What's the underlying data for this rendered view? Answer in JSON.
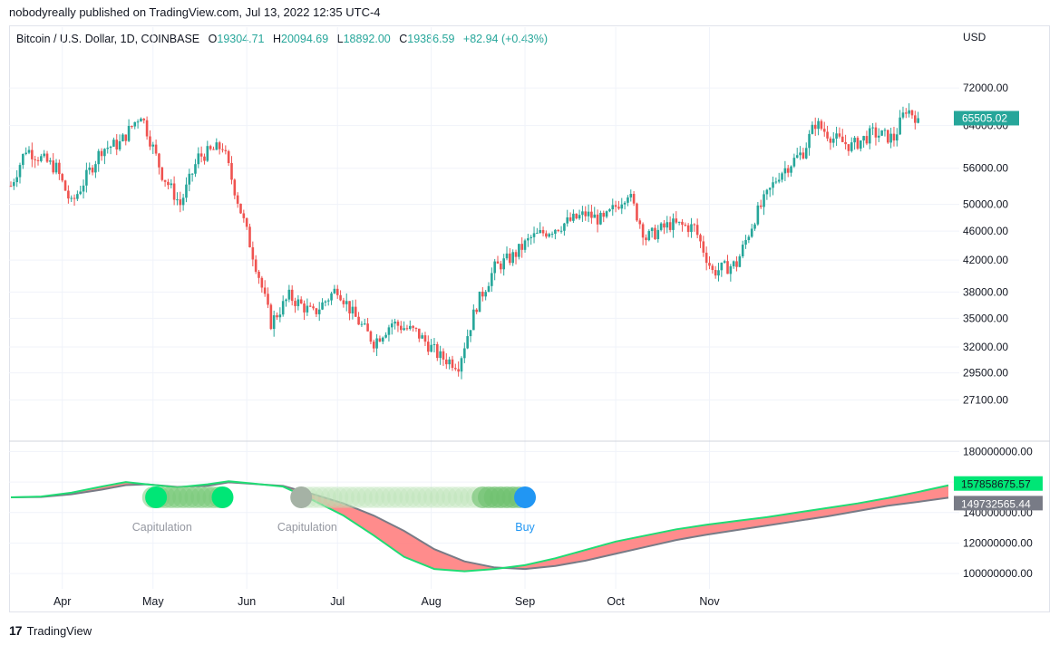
{
  "header": {
    "published": "nobodyreally published on TradingView.com, Jul 13, 2022 12:35 UTC-4"
  },
  "legend": {
    "symbol": "Bitcoin / U.S. Dollar, 1D, COINBASE",
    "o_label": "O",
    "o_value": "19304.71",
    "h_label": "H",
    "h_value": "20094.69",
    "l_label": "L",
    "l_value": "18892.00",
    "c_label": "C",
    "c_value": "19386.59",
    "change": "+82.94 (+0.43%)"
  },
  "currency": "USD",
  "colors": {
    "up": "#26a69a",
    "down": "#ef5350",
    "fast_line": "#1fdc74",
    "slow_line": "#787b86",
    "fill_red": "#ff8080",
    "fill_green": "#c8ecc8",
    "buy": "#2196f3",
    "grid": "#f0f3fa"
  },
  "chart_data": [
    {
      "type": "candlestick",
      "title": "",
      "yscale": "log",
      "ylim": [
        25000,
        80000
      ],
      "yticks": [
        "72000.00",
        "64000.00",
        "56000.00",
        "50000.00",
        "46000.00",
        "42000.00",
        "38000.00",
        "35000.00",
        "32000.00",
        "29500.00",
        "27100.00"
      ],
      "last_price_label": "65505.02",
      "xlabels": [
        "Apr",
        "May",
        "Jun",
        "Jul",
        "Aug",
        "Sep",
        "Oct",
        "Nov"
      ],
      "waypoints": [
        {
          "day": 0,
          "value": 53000
        },
        {
          "day": 5,
          "value": 59500
        },
        {
          "day": 15,
          "value": 56000
        },
        {
          "day": 20,
          "value": 50000
        },
        {
          "day": 30,
          "value": 59500
        },
        {
          "day": 36,
          "value": 60500
        },
        {
          "day": 43,
          "value": 66500
        },
        {
          "day": 50,
          "value": 55000
        },
        {
          "day": 56,
          "value": 50000
        },
        {
          "day": 62,
          "value": 58000
        },
        {
          "day": 70,
          "value": 60000
        },
        {
          "day": 76,
          "value": 49000
        },
        {
          "day": 82,
          "value": 40000
        },
        {
          "day": 86,
          "value": 34500
        },
        {
          "day": 92,
          "value": 37500
        },
        {
          "day": 100,
          "value": 35500
        },
        {
          "day": 108,
          "value": 38500
        },
        {
          "day": 113,
          "value": 35500
        },
        {
          "day": 120,
          "value": 32500
        },
        {
          "day": 126,
          "value": 34500
        },
        {
          "day": 134,
          "value": 33500
        },
        {
          "day": 142,
          "value": 31000
        },
        {
          "day": 148,
          "value": 30300
        },
        {
          "day": 154,
          "value": 36500
        },
        {
          "day": 160,
          "value": 41000
        },
        {
          "day": 166,
          "value": 42500
        },
        {
          "day": 172,
          "value": 45000
        },
        {
          "day": 180,
          "value": 46500
        },
        {
          "day": 190,
          "value": 48500
        },
        {
          "day": 196,
          "value": 47500
        },
        {
          "day": 204,
          "value": 52000
        },
        {
          "day": 210,
          "value": 45000
        },
        {
          "day": 218,
          "value": 47000
        },
        {
          "day": 226,
          "value": 46500
        },
        {
          "day": 232,
          "value": 40500
        },
        {
          "day": 240,
          "value": 41500
        },
        {
          "day": 246,
          "value": 48000
        },
        {
          "day": 254,
          "value": 55000
        },
        {
          "day": 262,
          "value": 59000
        },
        {
          "day": 266,
          "value": 64500
        },
        {
          "day": 272,
          "value": 61500
        },
        {
          "day": 278,
          "value": 60000
        },
        {
          "day": 285,
          "value": 62500
        },
        {
          "day": 292,
          "value": 61500
        },
        {
          "day": 296,
          "value": 67500
        },
        {
          "day": 300,
          "value": 65505
        }
      ]
    },
    {
      "type": "line",
      "title": "",
      "ylim": [
        90000000,
        185000000
      ],
      "yticks": [
        "180000000.00",
        "160000000.00",
        "140000000.00",
        "120000000.00",
        "100000000.00"
      ],
      "series": [
        {
          "value_label": "157858675.57",
          "points": [
            [
              0,
              150000000
            ],
            [
              10,
              150500000
            ],
            [
              20,
              153000000
            ],
            [
              30,
              157000000
            ],
            [
              38,
              160000000
            ],
            [
              45,
              158500000
            ],
            [
              55,
              156500000
            ],
            [
              65,
              158500000
            ],
            [
              72,
              160500000
            ],
            [
              80,
              159000000
            ],
            [
              90,
              157000000
            ],
            [
              100,
              148000000
            ],
            [
              110,
              138000000
            ],
            [
              120,
              125000000
            ],
            [
              130,
              111000000
            ],
            [
              140,
              103000000
            ],
            [
              150,
              101500000
            ],
            [
              160,
              103000000
            ],
            [
              170,
              105500000
            ],
            [
              180,
              110000000
            ],
            [
              190,
              115500000
            ],
            [
              200,
              121000000
            ],
            [
              210,
              125000000
            ],
            [
              220,
              129000000
            ],
            [
              230,
              132000000
            ],
            [
              240,
              134500000
            ],
            [
              250,
              137000000
            ],
            [
              260,
              140000000
            ],
            [
              270,
              143000000
            ],
            [
              280,
              146000000
            ],
            [
              290,
              149500000
            ],
            [
              300,
              153500000
            ],
            [
              310,
              157858675
            ]
          ]
        },
        {
          "value_label": "149732565.44",
          "points": [
            [
              0,
              150000000
            ],
            [
              10,
              150200000
            ],
            [
              20,
              152000000
            ],
            [
              30,
              155000000
            ],
            [
              38,
              158000000
            ],
            [
              45,
              158500000
            ],
            [
              55,
              156800000
            ],
            [
              65,
              157500000
            ],
            [
              72,
              159800000
            ],
            [
              80,
              158800000
            ],
            [
              90,
              157500000
            ],
            [
              100,
              152000000
            ],
            [
              110,
              146000000
            ],
            [
              120,
              138000000
            ],
            [
              130,
              128000000
            ],
            [
              140,
              116000000
            ],
            [
              150,
              108000000
            ],
            [
              160,
              104000000
            ],
            [
              170,
              103000000
            ],
            [
              180,
              105000000
            ],
            [
              190,
              108500000
            ],
            [
              200,
              113000000
            ],
            [
              210,
              117500000
            ],
            [
              220,
              122000000
            ],
            [
              230,
              125500000
            ],
            [
              240,
              128500000
            ],
            [
              250,
              131500000
            ],
            [
              260,
              134500000
            ],
            [
              270,
              137500000
            ],
            [
              280,
              141000000
            ],
            [
              290,
              144500000
            ],
            [
              300,
              147000000
            ],
            [
              310,
              149732565
            ]
          ]
        }
      ],
      "markers": [
        {
          "label": "Capitulation",
          "x_day": 50
        },
        {
          "label": "Capitulation",
          "x_day": 98
        },
        {
          "label": "Buy",
          "x_day": 170
        }
      ]
    }
  ],
  "footer": {
    "brand": "TradingView",
    "logo": "17"
  }
}
